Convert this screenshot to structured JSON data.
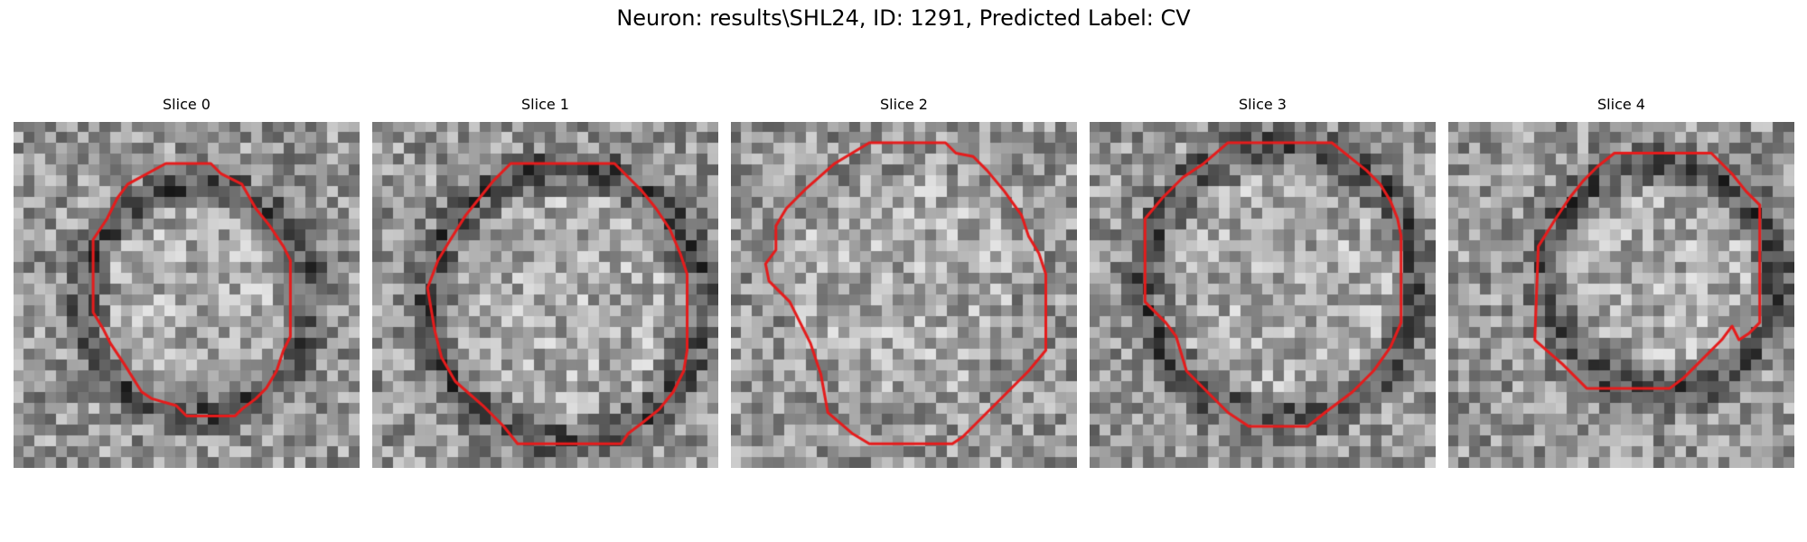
{
  "title": "Neuron: results\\SHL24, ID: 1291, Predicted Label: CV",
  "colors": {
    "contour": "#e51c1c"
  },
  "slices": [
    {
      "label": "Slice 0",
      "seed": 11,
      "dark_ring": true,
      "contour": [
        [
          0.44,
          0.12
        ],
        [
          0.57,
          0.12
        ],
        [
          0.6,
          0.15
        ],
        [
          0.66,
          0.18
        ],
        [
          0.7,
          0.25
        ],
        [
          0.74,
          0.3
        ],
        [
          0.78,
          0.36
        ],
        [
          0.8,
          0.4
        ],
        [
          0.8,
          0.62
        ],
        [
          0.78,
          0.66
        ],
        [
          0.76,
          0.72
        ],
        [
          0.73,
          0.77
        ],
        [
          0.7,
          0.8
        ],
        [
          0.66,
          0.83
        ],
        [
          0.64,
          0.85
        ],
        [
          0.5,
          0.85
        ],
        [
          0.47,
          0.82
        ],
        [
          0.4,
          0.8
        ],
        [
          0.37,
          0.78
        ],
        [
          0.32,
          0.7
        ],
        [
          0.28,
          0.64
        ],
        [
          0.26,
          0.6
        ],
        [
          0.23,
          0.55
        ],
        [
          0.23,
          0.34
        ],
        [
          0.27,
          0.28
        ],
        [
          0.3,
          0.22
        ],
        [
          0.33,
          0.18
        ]
      ]
    },
    {
      "label": "Slice 1",
      "seed": 23,
      "dark_ring": true,
      "contour": [
        [
          0.4,
          0.12
        ],
        [
          0.7,
          0.12
        ],
        [
          0.74,
          0.16
        ],
        [
          0.78,
          0.2
        ],
        [
          0.82,
          0.25
        ],
        [
          0.86,
          0.31
        ],
        [
          0.89,
          0.38
        ],
        [
          0.91,
          0.44
        ],
        [
          0.91,
          0.66
        ],
        [
          0.9,
          0.72
        ],
        [
          0.87,
          0.78
        ],
        [
          0.83,
          0.83
        ],
        [
          0.78,
          0.87
        ],
        [
          0.74,
          0.9
        ],
        [
          0.72,
          0.93
        ],
        [
          0.42,
          0.93
        ],
        [
          0.38,
          0.88
        ],
        [
          0.32,
          0.82
        ],
        [
          0.24,
          0.75
        ],
        [
          0.2,
          0.68
        ],
        [
          0.18,
          0.6
        ],
        [
          0.16,
          0.48
        ],
        [
          0.19,
          0.4
        ],
        [
          0.22,
          0.35
        ],
        [
          0.27,
          0.27
        ],
        [
          0.31,
          0.22
        ],
        [
          0.35,
          0.17
        ]
      ]
    },
    {
      "label": "Slice 2",
      "seed": 37,
      "dark_ring": false,
      "contour": [
        [
          0.4,
          0.06
        ],
        [
          0.62,
          0.06
        ],
        [
          0.65,
          0.09
        ],
        [
          0.7,
          0.1
        ],
        [
          0.74,
          0.14
        ],
        [
          0.79,
          0.2
        ],
        [
          0.84,
          0.27
        ],
        [
          0.86,
          0.33
        ],
        [
          0.89,
          0.38
        ],
        [
          0.91,
          0.44
        ],
        [
          0.91,
          0.66
        ],
        [
          0.86,
          0.72
        ],
        [
          0.8,
          0.78
        ],
        [
          0.73,
          0.85
        ],
        [
          0.67,
          0.91
        ],
        [
          0.64,
          0.93
        ],
        [
          0.4,
          0.93
        ],
        [
          0.35,
          0.9
        ],
        [
          0.28,
          0.84
        ],
        [
          0.26,
          0.73
        ],
        [
          0.23,
          0.64
        ],
        [
          0.2,
          0.58
        ],
        [
          0.17,
          0.52
        ],
        [
          0.11,
          0.46
        ],
        [
          0.1,
          0.41
        ],
        [
          0.13,
          0.37
        ],
        [
          0.13,
          0.3
        ],
        [
          0.16,
          0.25
        ],
        [
          0.22,
          0.19
        ],
        [
          0.3,
          0.12
        ]
      ]
    },
    {
      "label": "Slice 3",
      "seed": 53,
      "dark_ring": true,
      "contour": [
        [
          0.4,
          0.06
        ],
        [
          0.7,
          0.06
        ],
        [
          0.75,
          0.1
        ],
        [
          0.8,
          0.14
        ],
        [
          0.84,
          0.18
        ],
        [
          0.87,
          0.23
        ],
        [
          0.89,
          0.28
        ],
        [
          0.9,
          0.33
        ],
        [
          0.9,
          0.58
        ],
        [
          0.87,
          0.65
        ],
        [
          0.82,
          0.72
        ],
        [
          0.76,
          0.78
        ],
        [
          0.68,
          0.84
        ],
        [
          0.63,
          0.88
        ],
        [
          0.46,
          0.88
        ],
        [
          0.4,
          0.84
        ],
        [
          0.34,
          0.78
        ],
        [
          0.28,
          0.72
        ],
        [
          0.25,
          0.62
        ],
        [
          0.22,
          0.58
        ],
        [
          0.16,
          0.52
        ],
        [
          0.16,
          0.28
        ],
        [
          0.21,
          0.22
        ],
        [
          0.27,
          0.16
        ],
        [
          0.33,
          0.12
        ]
      ]
    },
    {
      "label": "Slice 4",
      "seed": 71,
      "dark_ring": true,
      "contour": [
        [
          0.48,
          0.09
        ],
        [
          0.76,
          0.09
        ],
        [
          0.82,
          0.15
        ],
        [
          0.86,
          0.2
        ],
        [
          0.9,
          0.24
        ],
        [
          0.9,
          0.58
        ],
        [
          0.87,
          0.61
        ],
        [
          0.84,
          0.63
        ],
        [
          0.82,
          0.59
        ],
        [
          0.79,
          0.63
        ],
        [
          0.76,
          0.66
        ],
        [
          0.72,
          0.7
        ],
        [
          0.68,
          0.74
        ],
        [
          0.64,
          0.77
        ],
        [
          0.4,
          0.77
        ],
        [
          0.33,
          0.7
        ],
        [
          0.25,
          0.63
        ],
        [
          0.26,
          0.36
        ],
        [
          0.31,
          0.28
        ],
        [
          0.35,
          0.22
        ],
        [
          0.39,
          0.17
        ],
        [
          0.43,
          0.13
        ]
      ]
    }
  ]
}
